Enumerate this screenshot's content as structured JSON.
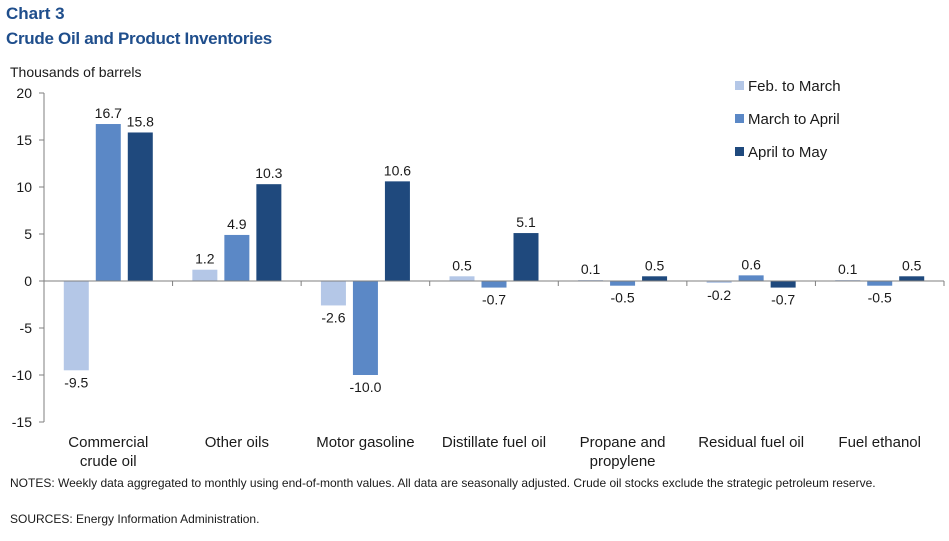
{
  "header": {
    "chart_label": "Chart 3",
    "title": "Crude Oil and Product Inventories"
  },
  "notes": "NOTES: Weekly data aggregated to monthly using end-of-month values. All data are seasonally adjusted. Crude oil stocks exclude the strategic petroleum reserve.",
  "sources": "SOURCES: Energy Information Administration.",
  "colors": {
    "series": [
      "#b4c7e7",
      "#5b88c6",
      "#1f497d"
    ]
  },
  "chart_data": {
    "type": "bar",
    "title": "Crude Oil and Product Inventories",
    "ylabel": "Thousands of barrels",
    "xlabel": "",
    "ylim": [
      -15,
      20
    ],
    "yticks": [
      -15,
      -10,
      -5,
      0,
      5,
      10,
      15,
      20
    ],
    "grid": false,
    "legend_position": "top-right",
    "categories": [
      [
        "Commercial",
        "crude oil"
      ],
      [
        "Other oils"
      ],
      [
        "Motor gasoline"
      ],
      [
        "Distillate fuel oil"
      ],
      [
        "Propane and",
        "propylene"
      ],
      [
        "Residual fuel oil"
      ],
      [
        "Fuel ethanol"
      ]
    ],
    "series": [
      {
        "name": "Feb. to March",
        "values": [
          -9.5,
          1.2,
          -2.6,
          0.5,
          0.1,
          -0.2,
          0.1
        ]
      },
      {
        "name": "March to April",
        "values": [
          16.7,
          4.9,
          -10.0,
          -0.7,
          -0.5,
          0.6,
          -0.5
        ]
      },
      {
        "name": "April to May",
        "values": [
          15.8,
          10.3,
          10.6,
          5.1,
          0.5,
          -0.7,
          0.5
        ]
      }
    ]
  }
}
